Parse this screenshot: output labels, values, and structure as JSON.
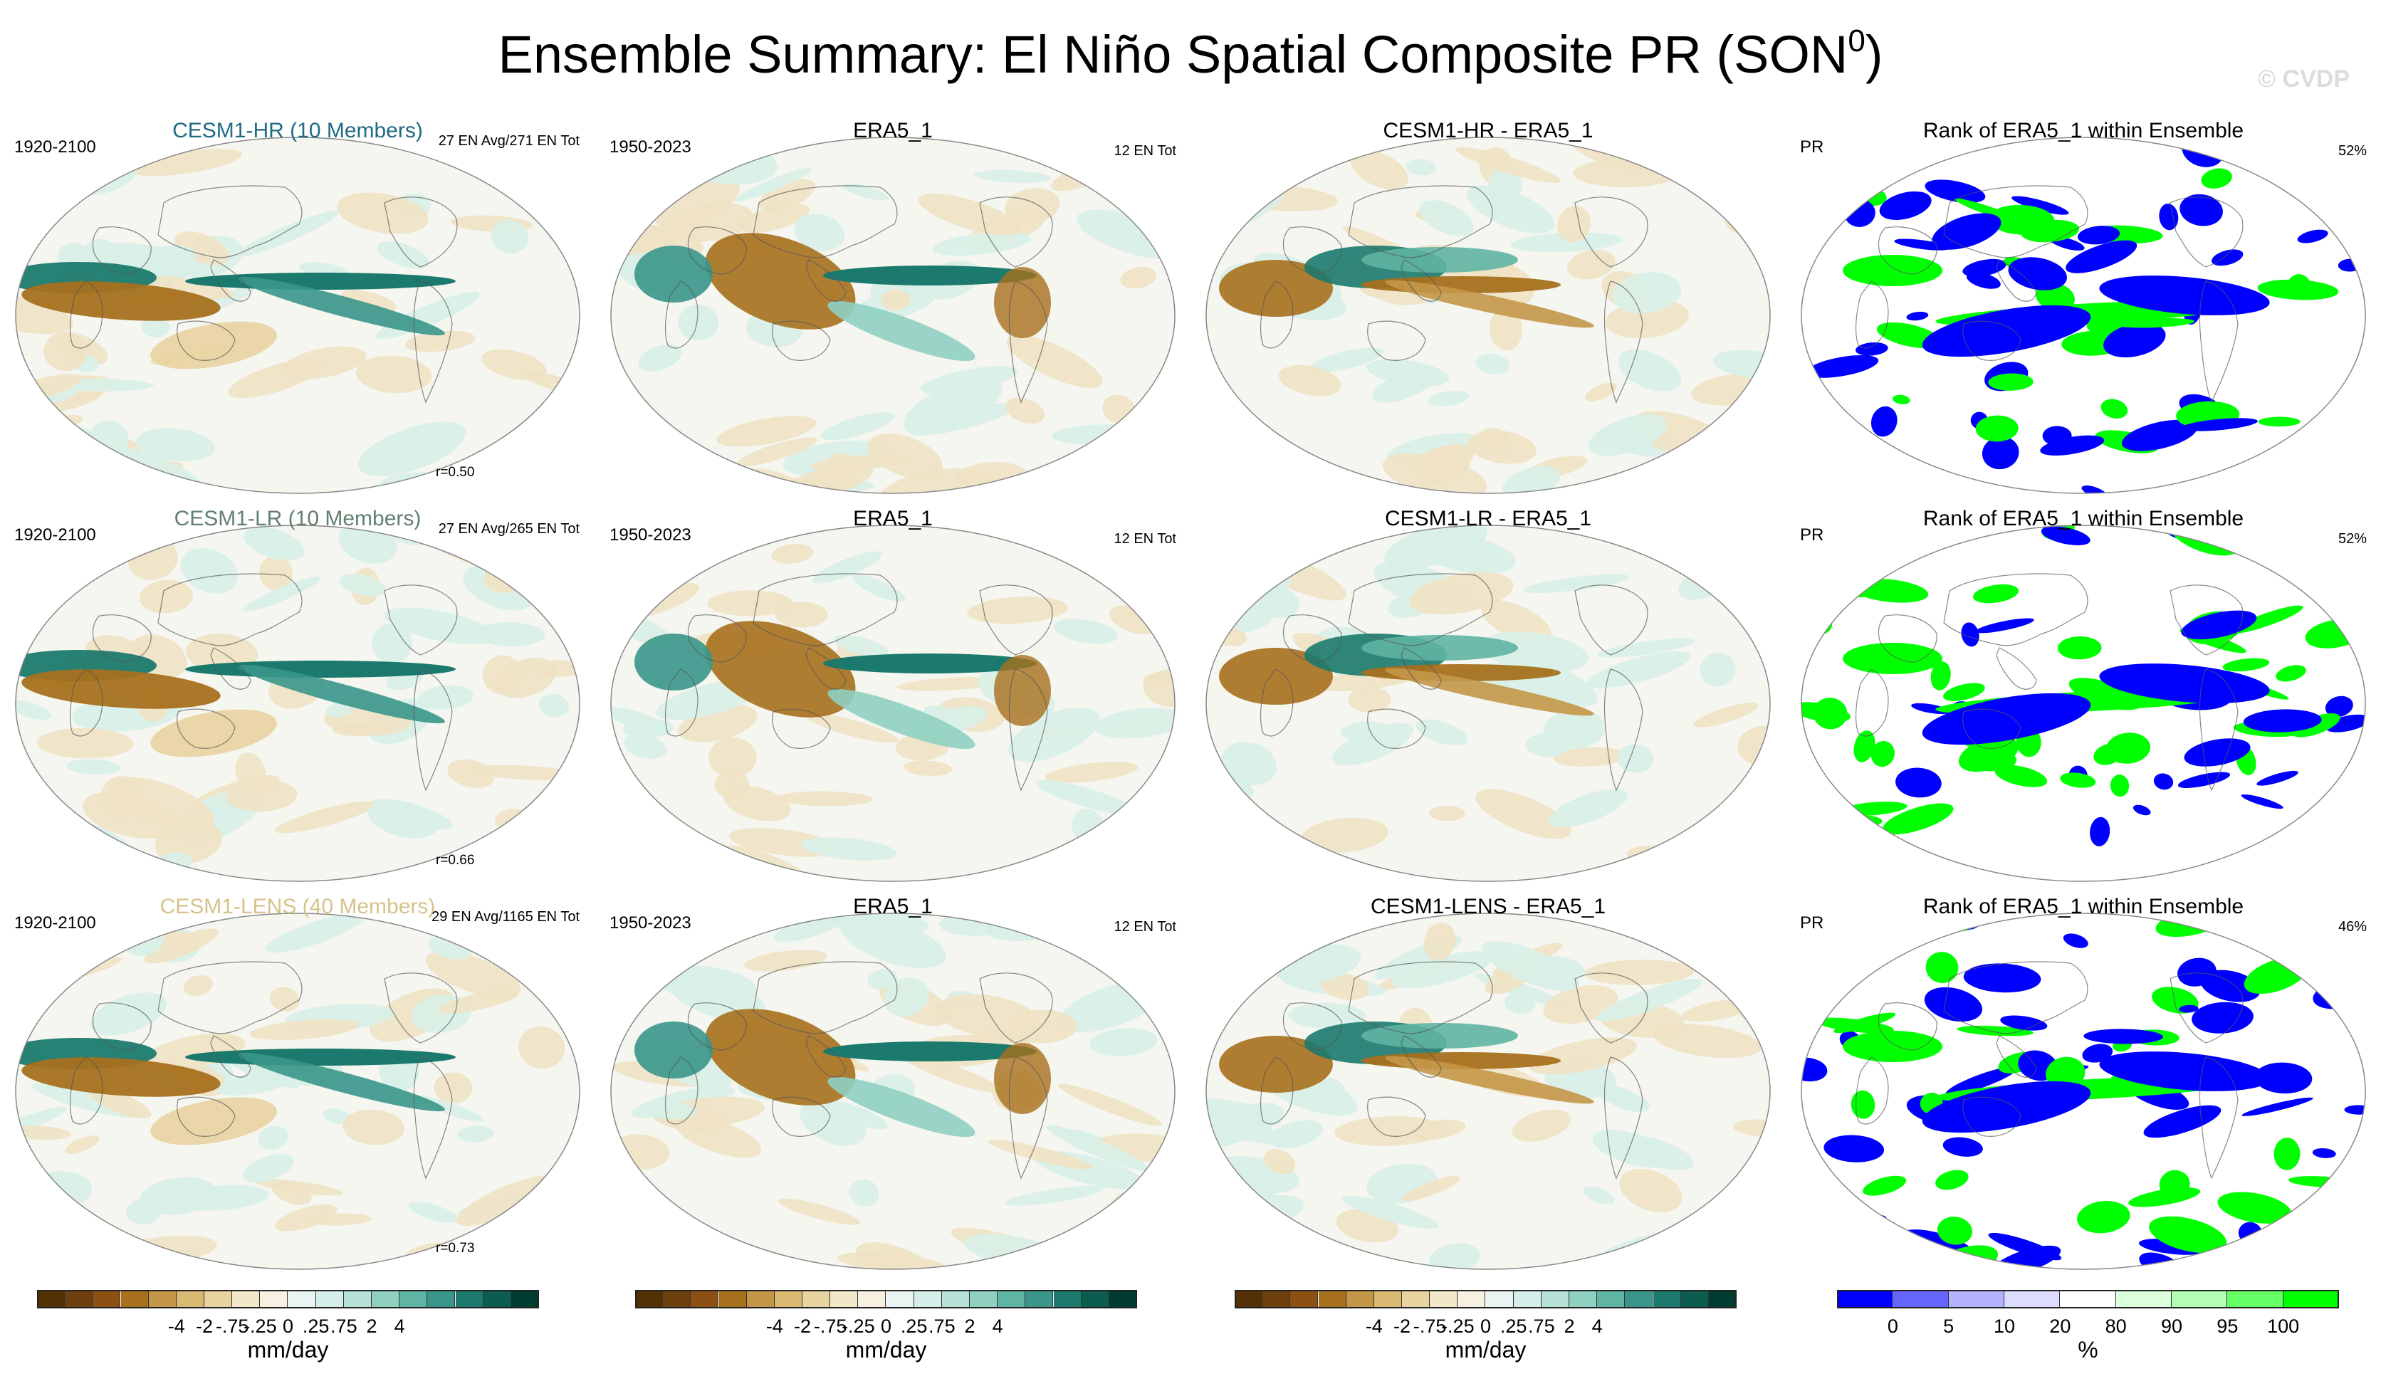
{
  "title_text": "Ensemble Summary: El Niño Spatial Composite PR (SON",
  "title_sup": "0",
  "title_close": ")",
  "watermark": "© CVDP",
  "rows": [
    {
      "panels": [
        {
          "title": "CESM1-HR (10 Members)",
          "years": "1920-2100",
          "info": "27 EN Avg/271 EN Tot",
          "r": "r=0.50",
          "kind": "model"
        },
        {
          "title": "ERA5_1",
          "years": "1950-2023",
          "info": "12 EN Tot",
          "kind": "obs"
        },
        {
          "title": "CESM1-HR - ERA5_1",
          "kind": "diff"
        },
        {
          "title": "Rank of ERA5_1 within Ensemble",
          "years": "PR",
          "info": "52%",
          "kind": "rank"
        }
      ]
    },
    {
      "panels": [
        {
          "title": "CESM1-LR (10 Members)",
          "years": "1920-2100",
          "info": "27 EN Avg/265 EN Tot",
          "r": "r=0.66",
          "kind": "model"
        },
        {
          "title": "ERA5_1",
          "years": "1950-2023",
          "info": "12 EN Tot",
          "kind": "obs"
        },
        {
          "title": "CESM1-LR - ERA5_1",
          "kind": "diff"
        },
        {
          "title": "Rank of ERA5_1 within Ensemble",
          "years": "PR",
          "info": "52%",
          "kind": "rank"
        }
      ]
    },
    {
      "panels": [
        {
          "title": "CESM1-LENS (40 Members)",
          "years": "1920-2100",
          "info": "29 EN Avg/1165 EN Tot",
          "r": "r=0.73",
          "kind": "model"
        },
        {
          "title": "ERA5_1",
          "years": "1950-2023",
          "info": "12 EN Tot",
          "kind": "obs"
        },
        {
          "title": "CESM1-LENS - ERA5_1",
          "kind": "diff"
        },
        {
          "title": "Rank of ERA5_1 within Ensemble",
          "years": "PR",
          "info": "46%",
          "kind": "rank"
        }
      ]
    }
  ],
  "colorbars": [
    {
      "unit": "mm/day",
      "labels": [
        "-4",
        "-2",
        "-.75",
        "-.25",
        "0",
        ".25",
        ".75",
        "2",
        "4"
      ],
      "colors": [
        "#543005",
        "#6e400d",
        "#8c5112",
        "#a7701d",
        "#c49748",
        "#dab973",
        "#e9d3a0",
        "#f3e7c9",
        "#f7f1e2",
        "#eaf4f2",
        "#d6eeea",
        "#b7e2d9",
        "#8fd0c1",
        "#5fb4a3",
        "#3a968a",
        "#1b7a6d",
        "#0c5c50",
        "#003c30"
      ]
    },
    {
      "unit": "mm/day",
      "labels": [
        "-4",
        "-2",
        "-.75",
        "-.25",
        "0",
        ".25",
        ".75",
        "2",
        "4"
      ],
      "colors": [
        "#543005",
        "#6e400d",
        "#8c5112",
        "#a7701d",
        "#c49748",
        "#dab973",
        "#e9d3a0",
        "#f3e7c9",
        "#f7f1e2",
        "#eaf4f2",
        "#d6eeea",
        "#b7e2d9",
        "#8fd0c1",
        "#5fb4a3",
        "#3a968a",
        "#1b7a6d",
        "#0c5c50",
        "#003c30"
      ]
    },
    {
      "unit": "mm/day",
      "labels": [
        "-4",
        "-2",
        "-.75",
        "-.25",
        "0",
        ".25",
        ".75",
        "2",
        "4"
      ],
      "colors": [
        "#543005",
        "#6e400d",
        "#8c5112",
        "#a7701d",
        "#c49748",
        "#dab973",
        "#e9d3a0",
        "#f3e7c9",
        "#f7f1e2",
        "#eaf4f2",
        "#d6eeea",
        "#b7e2d9",
        "#8fd0c1",
        "#5fb4a3",
        "#3a968a",
        "#1b7a6d",
        "#0c5c50",
        "#003c30"
      ]
    },
    {
      "unit": "%",
      "labels": [
        "0",
        "5",
        "10",
        "20",
        "80",
        "90",
        "95",
        "100"
      ],
      "colors": [
        "#0000ff",
        "#6666ff",
        "#b3b3ff",
        "#dcdcff",
        "#ffffff",
        "#dcffdc",
        "#b3ffb3",
        "#66ff66",
        "#00ff00"
      ]
    }
  ],
  "palette": {
    "brown": "#a7701d",
    "teal": "#1b7a6d",
    "blue": "#0000ff",
    "green": "#00ff00"
  }
}
